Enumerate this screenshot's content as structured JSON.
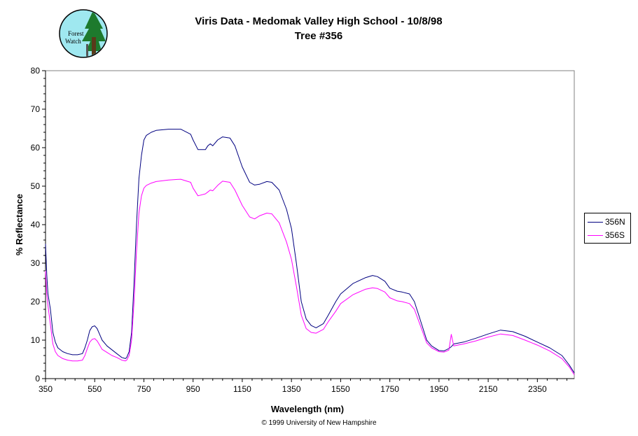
{
  "logo": {
    "line1": "Forest",
    "line2": "Watch"
  },
  "copyright": "© 1999 University of New Hampshire",
  "chart_data": {
    "type": "line",
    "title": "Viris Data - Medomak Valley High School - 10/8/98",
    "subtitle": "Tree #356",
    "xlabel": "Wavelength (nm)",
    "ylabel": "% Reflectance",
    "xlim": [
      350,
      2500
    ],
    "ylim": [
      0,
      80
    ],
    "xticks": [
      350,
      550,
      750,
      950,
      1150,
      1350,
      1550,
      1750,
      1950,
      2150,
      2350
    ],
    "yticks": [
      0,
      10,
      20,
      30,
      40,
      50,
      60,
      70,
      80
    ],
    "grid": false,
    "legend": "right",
    "series": [
      {
        "name": "356N",
        "color": "#000080",
        "x": [
          350,
          355,
          360,
          370,
          380,
          390,
          400,
          420,
          440,
          460,
          480,
          500,
          510,
          520,
          530,
          540,
          550,
          560,
          570,
          580,
          600,
          620,
          640,
          660,
          675,
          680,
          690,
          700,
          710,
          720,
          730,
          740,
          750,
          760,
          780,
          800,
          850,
          900,
          940,
          950,
          970,
          1000,
          1010,
          1020,
          1030,
          1050,
          1070,
          1100,
          1120,
          1150,
          1180,
          1200,
          1220,
          1250,
          1270,
          1300,
          1330,
          1350,
          1370,
          1390,
          1410,
          1430,
          1450,
          1480,
          1500,
          1530,
          1550,
          1600,
          1650,
          1680,
          1700,
          1730,
          1750,
          1780,
          1800,
          1830,
          1850,
          1870,
          1890,
          1900,
          1920,
          1950,
          1970,
          1990,
          2000,
          2010,
          2050,
          2100,
          2150,
          2200,
          2250,
          2300,
          2350,
          2400,
          2450,
          2480,
          2500
        ],
        "y": [
          35,
          27,
          22,
          18,
          12,
          9.5,
          8,
          7,
          6.5,
          6.2,
          6.2,
          6.5,
          8,
          10,
          12.5,
          13.5,
          13.7,
          13,
          11.5,
          10,
          8.5,
          7.5,
          6.5,
          5.5,
          5.2,
          5.5,
          7,
          12,
          25,
          40,
          52,
          58,
          62,
          63.2,
          64,
          64.5,
          64.8,
          64.8,
          63.5,
          62,
          59.5,
          59.5,
          60.5,
          61,
          60.5,
          62,
          62.8,
          62.5,
          60.5,
          55,
          51,
          50.3,
          50.5,
          51.2,
          51,
          49,
          44,
          39,
          30,
          20,
          15.5,
          13.8,
          13.2,
          14.3,
          16.5,
          20,
          22,
          24.7,
          26.2,
          26.8,
          26.5,
          25.3,
          23.5,
          22.7,
          22.5,
          22,
          20,
          16,
          12,
          10,
          8.5,
          7.3,
          7.2,
          7.8,
          8.3,
          9,
          9.5,
          10.5,
          11.6,
          12.6,
          12.2,
          11,
          9.5,
          8,
          6,
          3.5,
          1.5
        ]
      },
      {
        "name": "356S",
        "color": "#ff00ff",
        "x": [
          350,
          355,
          360,
          370,
          380,
          390,
          400,
          420,
          440,
          460,
          480,
          500,
          510,
          520,
          530,
          540,
          550,
          560,
          570,
          580,
          600,
          620,
          640,
          660,
          675,
          680,
          690,
          700,
          710,
          720,
          730,
          740,
          750,
          760,
          780,
          800,
          850,
          900,
          940,
          950,
          970,
          1000,
          1010,
          1020,
          1030,
          1050,
          1070,
          1100,
          1120,
          1150,
          1180,
          1200,
          1220,
          1250,
          1270,
          1300,
          1330,
          1350,
          1370,
          1390,
          1410,
          1430,
          1450,
          1480,
          1500,
          1530,
          1550,
          1600,
          1650,
          1680,
          1700,
          1730,
          1750,
          1780,
          1800,
          1830,
          1850,
          1870,
          1890,
          1900,
          1920,
          1950,
          1970,
          1990,
          2000,
          2010,
          2050,
          2100,
          2150,
          2200,
          2250,
          2300,
          2350,
          2400,
          2450,
          2480,
          2500
        ],
        "y": [
          28,
          22,
          19,
          14,
          9,
          7,
          6,
          5.2,
          4.8,
          4.6,
          4.6,
          4.8,
          6,
          7.8,
          9.5,
          10.2,
          10.4,
          9.8,
          8.7,
          7.6,
          6.8,
          6,
          5.5,
          4.8,
          4.6,
          4.8,
          6,
          10,
          20,
          33,
          43,
          47.5,
          49.5,
          50.2,
          50.8,
          51.2,
          51.6,
          51.8,
          51,
          49.5,
          47.5,
          48,
          48.5,
          49,
          48.8,
          50.2,
          51.3,
          51,
          49,
          45,
          42,
          41.5,
          42.3,
          43,
          42.8,
          40.5,
          35.5,
          31,
          24,
          16.5,
          13,
          12,
          11.8,
          12.8,
          14.8,
          17.5,
          19.5,
          21.8,
          23.2,
          23.6,
          23.4,
          22.5,
          21,
          20.2,
          20,
          19.5,
          18,
          14.5,
          11,
          9.3,
          8,
          7,
          6.9,
          7.4,
          11.5,
          8.5,
          9,
          9.8,
          10.8,
          11.6,
          11.2,
          10,
          8.7,
          7.2,
          5.2,
          3,
          1
        ]
      }
    ]
  }
}
